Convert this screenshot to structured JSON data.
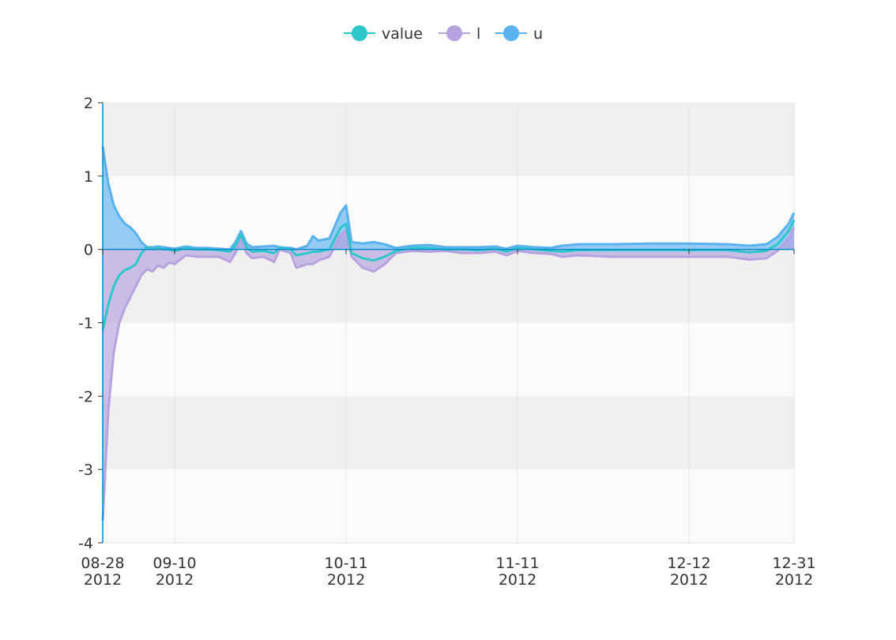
{
  "chart_data": {
    "type": "line",
    "legend": "top",
    "x": [
      "2012-08-28",
      "2012-08-29",
      "2012-08-30",
      "2012-08-31",
      "2012-09-01",
      "2012-09-02",
      "2012-09-03",
      "2012-09-04",
      "2012-09-05",
      "2012-09-06",
      "2012-09-07",
      "2012-09-08",
      "2012-09-09",
      "2012-09-10",
      "2012-09-12",
      "2012-09-14",
      "2012-09-16",
      "2012-09-18",
      "2012-09-20",
      "2012-09-21",
      "2012-09-22",
      "2012-09-23",
      "2012-09-24",
      "2012-09-26",
      "2012-09-28",
      "2012-09-29",
      "2012-10-01",
      "2012-10-02",
      "2012-10-04",
      "2012-10-05",
      "2012-10-06",
      "2012-10-08",
      "2012-10-10",
      "2012-10-11",
      "2012-10-12",
      "2012-10-14",
      "2012-10-16",
      "2012-10-18",
      "2012-10-20",
      "2012-10-23",
      "2012-10-26",
      "2012-10-29",
      "2012-11-01",
      "2012-11-04",
      "2012-11-07",
      "2012-11-09",
      "2012-11-11",
      "2012-11-14",
      "2012-11-17",
      "2012-11-19",
      "2012-11-22",
      "2012-11-28",
      "2012-12-05",
      "2012-12-12",
      "2012-12-19",
      "2012-12-23",
      "2012-12-26",
      "2012-12-28",
      "2012-12-30",
      "2012-12-31"
    ],
    "series": [
      {
        "name": "value",
        "color": "#2ec7c9",
        "values": [
          -1.1,
          -0.75,
          -0.5,
          -0.35,
          -0.28,
          -0.25,
          -0.2,
          -0.05,
          0.03,
          0.0,
          0.02,
          0.0,
          0.0,
          -0.02,
          0.02,
          0.0,
          0.0,
          -0.01,
          -0.03,
          0.05,
          0.2,
          0.03,
          -0.03,
          -0.02,
          -0.05,
          0.02,
          0.0,
          -0.08,
          -0.05,
          -0.03,
          -0.03,
          0.0,
          0.3,
          0.35,
          -0.05,
          -0.12,
          -0.15,
          -0.1,
          -0.02,
          0.02,
          0.02,
          0.0,
          0.0,
          -0.01,
          0.01,
          -0.03,
          0.02,
          0.0,
          -0.02,
          -0.03,
          -0.01,
          -0.01,
          -0.01,
          -0.01,
          -0.01,
          -0.04,
          -0.02,
          0.07,
          0.25,
          0.4
        ]
      },
      {
        "name": "l",
        "color": "#b6a2de",
        "values": [
          -3.7,
          -2.2,
          -1.4,
          -1.0,
          -0.8,
          -0.65,
          -0.5,
          -0.35,
          -0.27,
          -0.3,
          -0.22,
          -0.25,
          -0.18,
          -0.2,
          -0.08,
          -0.1,
          -0.1,
          -0.1,
          -0.17,
          -0.05,
          0.15,
          -0.05,
          -0.12,
          -0.1,
          -0.17,
          0.0,
          -0.05,
          -0.25,
          -0.2,
          -0.2,
          -0.15,
          -0.1,
          0.2,
          0.25,
          -0.1,
          -0.25,
          -0.3,
          -0.2,
          -0.05,
          -0.02,
          -0.03,
          -0.02,
          -0.05,
          -0.05,
          -0.03,
          -0.08,
          -0.02,
          -0.05,
          -0.06,
          -0.1,
          -0.08,
          -0.1,
          -0.1,
          -0.1,
          -0.1,
          -0.14,
          -0.12,
          -0.02,
          0.15,
          0.3
        ]
      },
      {
        "name": "u",
        "color": "#5ab1ef",
        "values": [
          1.4,
          0.9,
          0.6,
          0.45,
          0.35,
          0.3,
          0.22,
          0.1,
          0.03,
          0.03,
          0.04,
          0.03,
          0.02,
          0.01,
          0.04,
          0.02,
          0.02,
          0.01,
          0.0,
          0.1,
          0.25,
          0.08,
          0.03,
          0.04,
          0.05,
          0.03,
          0.02,
          0.0,
          0.05,
          0.18,
          0.12,
          0.15,
          0.5,
          0.6,
          0.1,
          0.08,
          0.1,
          0.07,
          0.02,
          0.05,
          0.06,
          0.03,
          0.03,
          0.03,
          0.04,
          0.01,
          0.05,
          0.03,
          0.02,
          0.05,
          0.07,
          0.07,
          0.08,
          0.08,
          0.07,
          0.05,
          0.07,
          0.17,
          0.35,
          0.5
        ]
      }
    ],
    "xlim": [
      "2012-08-28",
      "2012-12-31"
    ],
    "xticks": [
      {
        "value": "2012-08-28",
        "label": "08-28\n2012"
      },
      {
        "value": "2012-09-10",
        "label": "09-10\n2012"
      },
      {
        "value": "2012-10-11",
        "label": "10-11\n2012"
      },
      {
        "value": "2012-11-11",
        "label": "11-11\n2012"
      },
      {
        "value": "2012-12-12",
        "label": "12-12\n2012"
      },
      {
        "value": "2012-12-31",
        "label": "12-31\n2012"
      }
    ],
    "ylim": [
      -4,
      2
    ],
    "yticks": [
      -4,
      -3,
      -2,
      -1,
      0,
      1,
      2
    ],
    "grid": true
  }
}
